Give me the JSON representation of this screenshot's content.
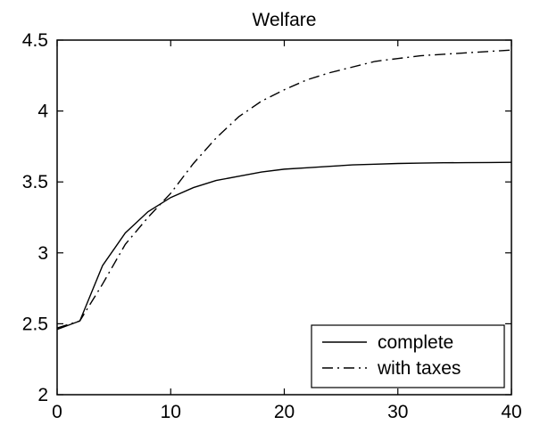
{
  "chart_data": {
    "type": "line",
    "title": "Welfare",
    "xlabel": "",
    "ylabel": "",
    "xlim": [
      0,
      40
    ],
    "ylim": [
      2,
      4.5
    ],
    "x_ticks": [
      0,
      10,
      20,
      30,
      40
    ],
    "y_ticks": [
      2,
      2.5,
      3,
      3.5,
      4,
      4.5
    ],
    "x_tick_labels": [
      "0",
      "10",
      "20",
      "30",
      "40"
    ],
    "y_tick_labels": [
      "2",
      "2.5",
      "3",
      "3.5",
      "4",
      "4.5"
    ],
    "grid": false,
    "legend_position": "bottom-right",
    "series": [
      {
        "name": "complete",
        "style": "solid",
        "color": "#000000",
        "x": [
          0,
          2,
          4,
          6,
          8,
          10,
          12,
          14,
          16,
          18,
          20,
          22,
          24,
          26,
          28,
          30,
          32,
          34,
          36,
          38,
          40
        ],
        "y": [
          2.46,
          2.52,
          2.91,
          3.14,
          3.29,
          3.39,
          3.46,
          3.51,
          3.54,
          3.57,
          3.59,
          3.6,
          3.61,
          3.62,
          3.625,
          3.63,
          3.633,
          3.635,
          3.636,
          3.637,
          3.638
        ]
      },
      {
        "name": "with taxes",
        "style": "dashdot",
        "color": "#000000",
        "x": [
          0,
          2,
          4,
          6,
          8,
          10,
          12,
          14,
          16,
          18,
          20,
          22,
          24,
          26,
          28,
          30,
          32,
          34,
          36,
          38,
          40
        ],
        "y": [
          2.47,
          2.52,
          2.78,
          3.06,
          3.25,
          3.42,
          3.63,
          3.81,
          3.96,
          4.07,
          4.15,
          4.22,
          4.27,
          4.31,
          4.35,
          4.37,
          4.39,
          4.4,
          4.41,
          4.42,
          4.43
        ]
      }
    ]
  }
}
